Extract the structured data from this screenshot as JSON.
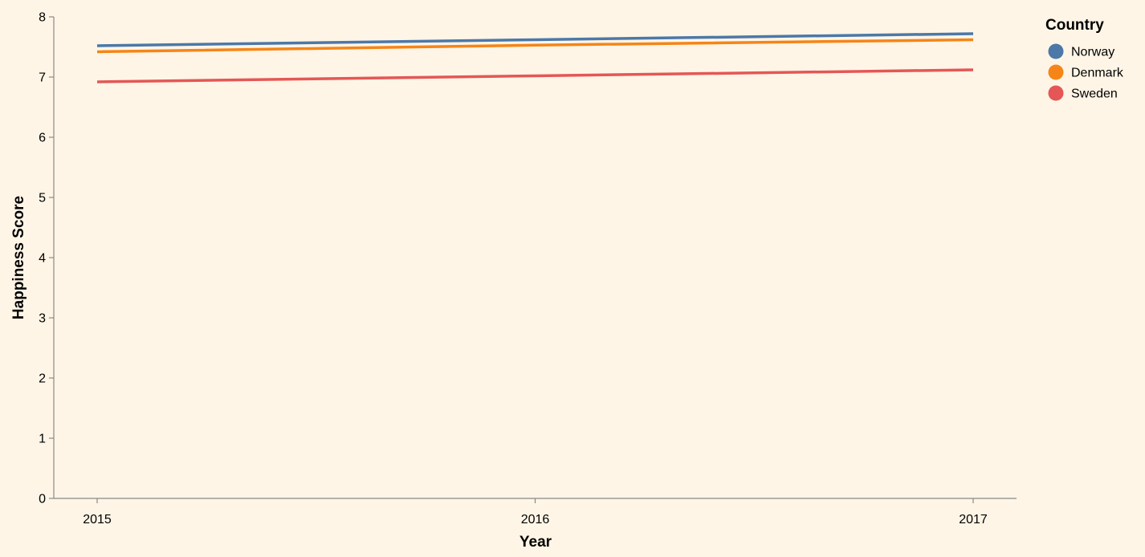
{
  "chart_data": {
    "type": "line",
    "xlabel": "Year",
    "ylabel": "Happiness Score",
    "x": [
      "2015",
      "2016",
      "2017"
    ],
    "ylim": [
      0,
      8
    ],
    "yticks": [
      "0",
      "1",
      "2",
      "3",
      "4",
      "5",
      "6",
      "7",
      "8"
    ],
    "grid": false,
    "legend": {
      "title": "Country",
      "placement": "top-right"
    },
    "series": [
      {
        "name": "Norway",
        "color": "#4c78a8",
        "values": [
          7.52,
          7.62,
          7.72
        ]
      },
      {
        "name": "Denmark",
        "color": "#f58518",
        "values": [
          7.42,
          7.53,
          7.62
        ]
      },
      {
        "name": "Sweden",
        "color": "#e45756",
        "values": [
          6.92,
          7.02,
          7.12
        ]
      }
    ]
  }
}
